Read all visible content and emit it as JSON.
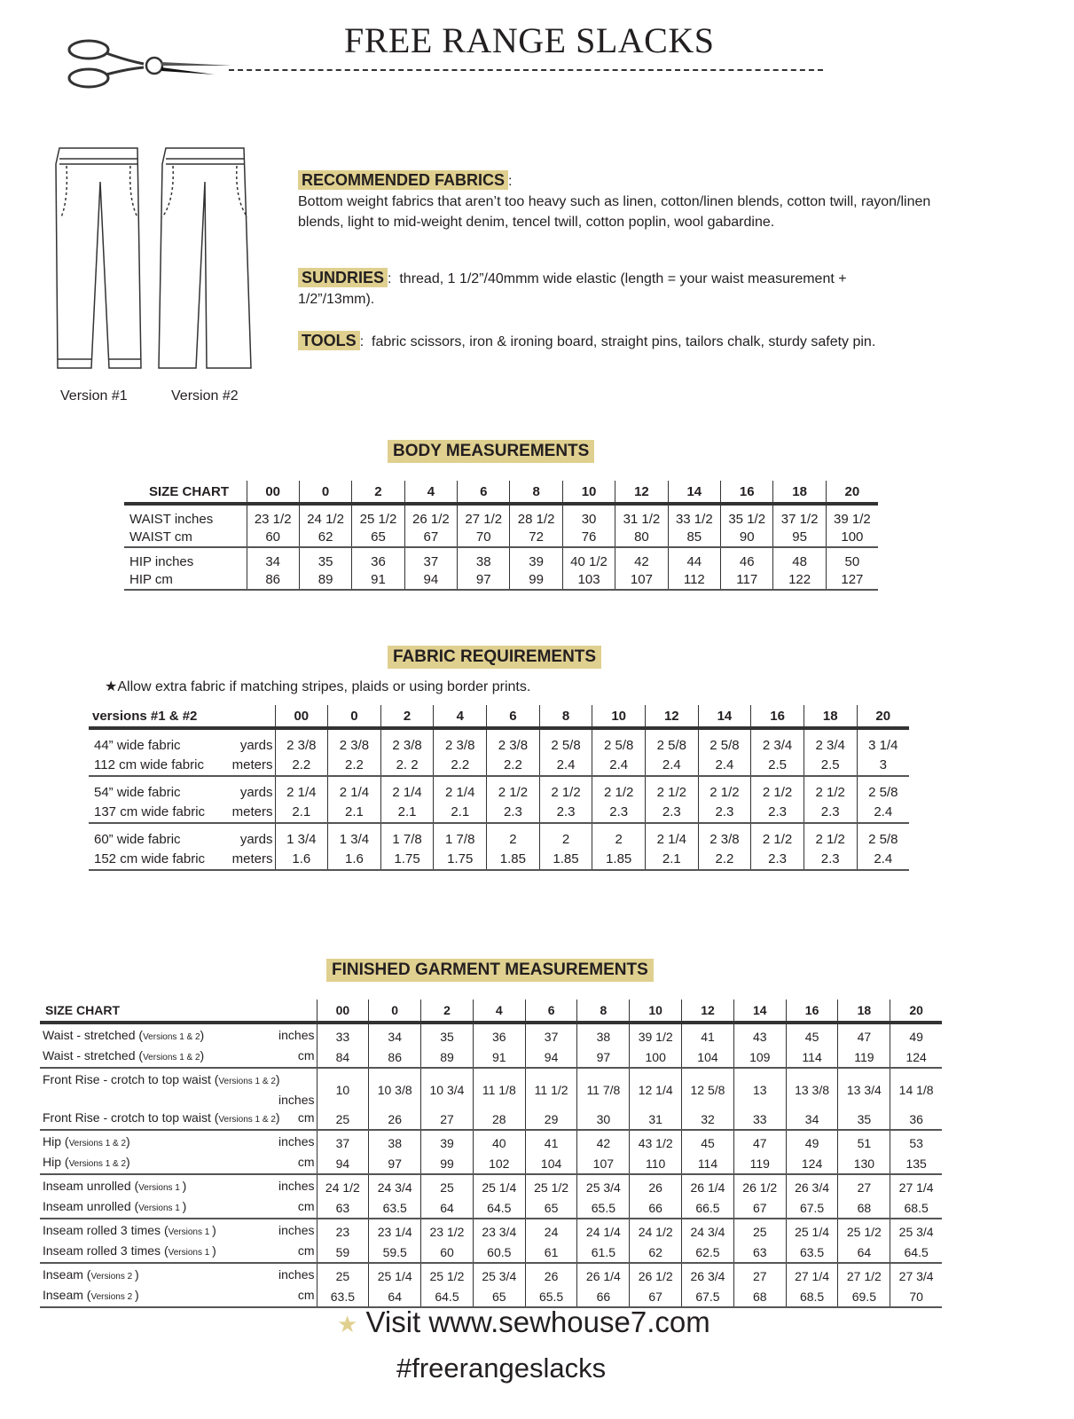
{
  "title": "FREE RANGE SLACKS",
  "colors": {
    "highlight": "#e0d08f",
    "text": "#231f20"
  },
  "versions": [
    "Version #1",
    "Version #2"
  ],
  "fabrics": {
    "heading": "RECOMMENDED FABRICS",
    "text": "Bottom weight fabrics that aren’t too heavy such as linen, cotton/linen blends, cotton twill, rayon/linen blends, light to mid-weight denim, tencel twill, cotton poplin, wool gabardine."
  },
  "sundries": {
    "heading": "SUNDRIES",
    "text": "thread, 1 1/2”/40mmm wide elastic (length = your waist measurement + 1/2”/13mm)."
  },
  "tools": {
    "heading": "TOOLS",
    "text": "fabric scissors, iron & ironing board, straight pins, tailors chalk, sturdy safety pin."
  },
  "sizes": [
    "00",
    "0",
    "2",
    "4",
    "6",
    "8",
    "10",
    "12",
    "14",
    "16",
    "18",
    "20"
  ],
  "body": {
    "heading": "BODY MEASUREMENTS",
    "corner": "SIZE CHART",
    "groups": [
      [
        {
          "label": "WAIST inches",
          "values": [
            "23 1/2",
            "24 1/2",
            "25 1/2",
            "26 1/2",
            "27 1/2",
            "28 1/2",
            "30",
            "31 1/2",
            "33 1/2",
            "35 1/2",
            "37 1/2",
            "39 1/2"
          ]
        },
        {
          "label": "WAIST cm",
          "values": [
            "60",
            "62",
            "65",
            "67",
            "70",
            "72",
            "76",
            "80",
            "85",
            "90",
            "95",
            "100"
          ]
        }
      ],
      [
        {
          "label": "HIP inches",
          "values": [
            "34",
            "35",
            "36",
            "37",
            "38",
            "39",
            "40 1/2",
            "42",
            "44",
            "46",
            "48",
            "50"
          ]
        },
        {
          "label": "HIP cm",
          "values": [
            "86",
            "89",
            "91",
            "94",
            "97",
            "99",
            "103",
            "107",
            "112",
            "117",
            "122",
            "127"
          ]
        }
      ]
    ]
  },
  "fabric_req": {
    "heading": "FABRIC REQUIREMENTS",
    "note": "Allow extra fabric if matching stripes, plaids or using border prints.",
    "corner": "versions #1 & #2",
    "groups": [
      [
        {
          "label": "44” wide fabric",
          "unit": "yards",
          "values": [
            "2 3/8",
            "2 3/8",
            "2 3/8",
            "2 3/8",
            "2 3/8",
            "2 5/8",
            "2 5/8",
            "2 5/8",
            "2 5/8",
            "2 3/4",
            "2 3/4",
            "3 1/4"
          ]
        },
        {
          "label": "112 cm wide fabric",
          "unit": "meters",
          "values": [
            "2.2",
            "2.2",
            "2. 2",
            "2.2",
            "2.2",
            "2.4",
            "2.4",
            "2.4",
            "2.4",
            "2.5",
            "2.5",
            "3"
          ]
        }
      ],
      [
        {
          "label": "54” wide fabric",
          "unit": "yards",
          "values": [
            "2 1/4",
            "2 1/4",
            "2 1/4",
            "2 1/4",
            "2 1/2",
            "2 1/2",
            "2 1/2",
            "2 1/2",
            "2 1/2",
            "2 1/2",
            "2 1/2",
            "2 5/8"
          ]
        },
        {
          "label": "137 cm wide fabric",
          "unit": "meters",
          "values": [
            "2.1",
            "2.1",
            "2.1",
            "2.1",
            "2.3",
            "2.3",
            "2.3",
            "2.3",
            "2.3",
            "2.3",
            "2.3",
            "2.4"
          ]
        }
      ],
      [
        {
          "label": "60” wide fabric",
          "unit": "yards",
          "values": [
            "1 3/4",
            "1 3/4",
            "1 7/8",
            "1 7/8",
            "2",
            "2",
            "2",
            "2 1/4",
            "2 3/8",
            "2 1/2",
            "2 1/2",
            "2 5/8"
          ]
        },
        {
          "label": "152 cm wide fabric",
          "unit": "meters",
          "values": [
            "1.6",
            "1.6",
            "1.75",
            "1.75",
            "1.85",
            "1.85",
            "1.85",
            "2.1",
            "2.2",
            "2.3",
            "2.3",
            "2.4"
          ]
        }
      ]
    ]
  },
  "finished": {
    "heading": "FINISHED GARMENT MEASUREMENTS",
    "corner": "SIZE CHART",
    "groups": [
      [
        {
          "label": "Waist  - stretched (",
          "note": "Versions 1 & 2",
          "close": ")",
          "unit": "inches",
          "values": [
            "33",
            "34",
            "35",
            "36",
            "37",
            "38",
            "39 1/2",
            "41",
            "43",
            "45",
            "47",
            "49"
          ]
        },
        {
          "label": "Waist  - stretched (",
          "note": "Versions 1 & 2",
          "close": ")",
          "unit": "cm",
          "values": [
            "84",
            "86",
            "89",
            "91",
            "94",
            "97",
            "100",
            "104",
            "109",
            "114",
            "119",
            "124"
          ]
        }
      ],
      [
        {
          "label": "Front Rise - crotch to top waist (",
          "note": "Versions 1 & 2",
          "close": ")",
          "unit": "inches",
          "values": [
            "10",
            "10 3/8",
            "10 3/4",
            "11 1/8",
            "11 1/2",
            "11 7/8",
            "12 1/4",
            "12 5/8",
            "13",
            "13 3/8",
            "13 3/4",
            "14 1/8"
          ]
        },
        {
          "label": "Front Rise - crotch to top waist (",
          "note": "Versions 1 & 2",
          "close": ")",
          "unit": "cm",
          "values": [
            "25",
            "26",
            "27",
            "28",
            "29",
            "30",
            "31",
            "32",
            "33",
            "34",
            "35",
            "36"
          ]
        }
      ],
      [
        {
          "label": "Hip (",
          "note": "Versions 1 & 2",
          "close": ")",
          "unit": "inches",
          "values": [
            "37",
            "38",
            "39",
            "40",
            "41",
            "42",
            "43 1/2",
            "45",
            "47",
            "49",
            "51",
            "53"
          ]
        },
        {
          "label": "Hip (",
          "note": "Versions 1 & 2",
          "close": ")",
          "unit": "cm",
          "values": [
            "94",
            "97",
            "99",
            "102",
            "104",
            "107",
            "110",
            "114",
            "119",
            "124",
            "130",
            "135"
          ]
        }
      ],
      [
        {
          "label": "Inseam unrolled (",
          "note": "Versions 1 ",
          "close": ")",
          "unit": "inches",
          "values": [
            "24 1/2",
            "24 3/4",
            "25",
            "25 1/4",
            "25 1/2",
            "25 3/4",
            "26",
            "26 1/4",
            "26 1/2",
            "26 3/4",
            "27",
            "27 1/4"
          ]
        },
        {
          "label": "Inseam unrolled (",
          "note": "Versions 1 ",
          "close": ")",
          "unit": "cm",
          "values": [
            "63",
            "63.5",
            "64",
            "64.5",
            "65",
            "65.5",
            "66",
            "66.5",
            "67",
            "67.5",
            "68",
            "68.5"
          ]
        }
      ],
      [
        {
          "label": "Inseam rolled 3 times (",
          "note": "Versions 1 ",
          "close": ")",
          "unit": "inches",
          "values": [
            "23",
            "23 1/4",
            "23 1/2",
            "23 3/4",
            "24",
            "24 1/4",
            "24 1/2",
            "24 3/4",
            "25",
            "25 1/4",
            "25 1/2",
            "25 3/4"
          ]
        },
        {
          "label": "Inseam rolled 3 times (",
          "note": "Versions 1 ",
          "close": ")",
          "unit": "cm",
          "values": [
            "59",
            "59.5",
            "60",
            "60.5",
            "61",
            "61.5",
            "62",
            "62.5",
            "63",
            "63.5",
            "64",
            "64.5"
          ]
        }
      ],
      [
        {
          "label": "Inseam (",
          "note": "Versions 2 ",
          "close": ")",
          "unit": "inches",
          "values": [
            "25",
            "25 1/4",
            "25 1/2",
            "25 3/4",
            "26",
            "26 1/4",
            "26 1/2",
            "26 3/4",
            "27",
            "27 1/4",
            "27 1/2",
            "27 3/4"
          ]
        },
        {
          "label": "Inseam (",
          "note": "Versions 2 ",
          "close": ")",
          "unit": "cm",
          "values": [
            "63.5",
            "64",
            "64.5",
            "65",
            "65.5",
            "66",
            "67",
            "67.5",
            "68",
            "68.5",
            "69.5",
            "70"
          ]
        }
      ]
    ]
  },
  "footer": {
    "visit": "Visit www.sewhouse7.com",
    "hashtag": "#freerangeslacks"
  }
}
